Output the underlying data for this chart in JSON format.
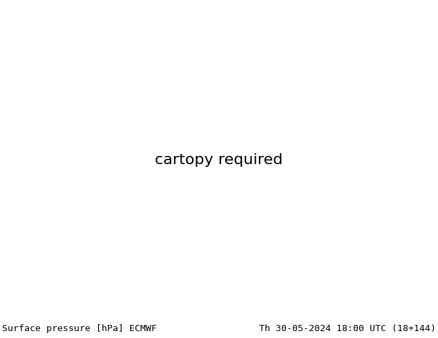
{
  "title_left": "Surface pressure [hPa] ECMWF",
  "title_right": "Th 30-05-2024 18:00 UTC (18+144)",
  "figsize": [
    6.34,
    4.9
  ],
  "dpi": 100,
  "background_color": "#ffffff",
  "text_color": "#000000",
  "font_size_title": 9.5,
  "lon_min": 20,
  "lon_max": 150,
  "lat_min": -2,
  "lat_max": 75,
  "ocean_color": "#b8d4e8",
  "land_color_low": "#c8d8a8",
  "land_color_high": "#c8a060",
  "tibet_color": "#b06030"
}
